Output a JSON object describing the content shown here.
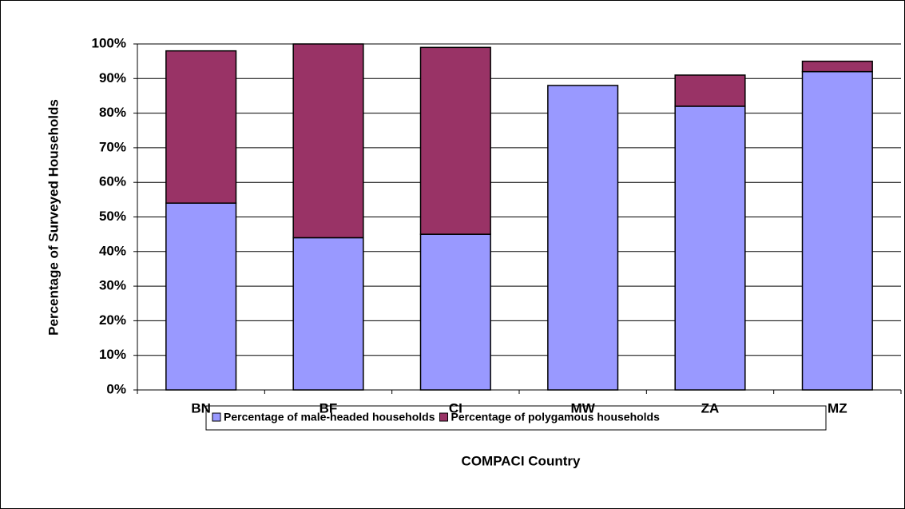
{
  "chart_data": {
    "type": "stacked-bar",
    "y_label": "Percentage of Surveyed Households",
    "x_label": "COMPACI Country",
    "categories": [
      "BN",
      "BF",
      "CI",
      "MW",
      "ZA",
      "MZ"
    ],
    "series": [
      {
        "name": "Percentage of male-headed households",
        "color": "#9999ff",
        "values": [
          54,
          44,
          45,
          88,
          82,
          92
        ]
      },
      {
        "name": "Percentage of polygamous households",
        "color": "#993366",
        "values": [
          44,
          56,
          54,
          0,
          9,
          3
        ]
      }
    ],
    "ylim": [
      0,
      100
    ],
    "yticks": [
      {
        "value": 0,
        "label": "0%"
      },
      {
        "value": 10,
        "label": "10%"
      },
      {
        "value": 20,
        "label": "20%"
      },
      {
        "value": 30,
        "label": "30%"
      },
      {
        "value": 40,
        "label": "40%"
      },
      {
        "value": 50,
        "label": "50%"
      },
      {
        "value": 60,
        "label": "60%"
      },
      {
        "value": 70,
        "label": "70%"
      },
      {
        "value": 80,
        "label": "80%"
      },
      {
        "value": 90,
        "label": "90%"
      },
      {
        "value": 100,
        "label": "100%"
      }
    ],
    "grid": true
  }
}
